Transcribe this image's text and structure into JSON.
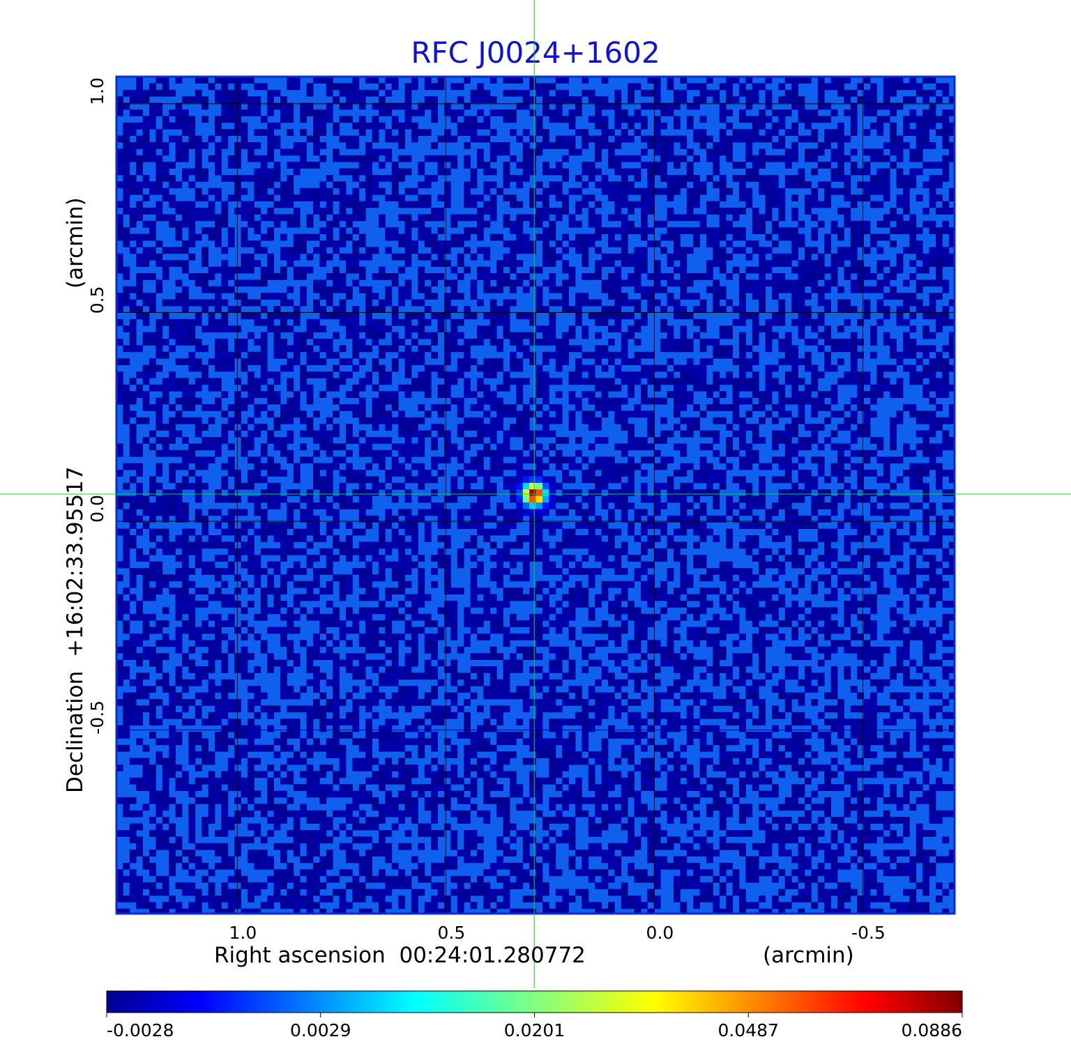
{
  "chart_data": {
    "type": "heatmap",
    "title": "RFC J0024+1602",
    "xlabel": "Right ascension  00:24:01.280772",
    "xunit": "(arcmin)",
    "ylabel": "Declination  +16:02:33.95517",
    "yunit": "(arcmin)",
    "x_axis": {
      "reversed": true,
      "range_arcmin": [
        1.29,
        -0.72
      ],
      "ticks": [
        1.0,
        0.5,
        0.0,
        -0.5
      ],
      "tick_labels": [
        "1.0",
        "0.5",
        "0.0",
        "-0.5"
      ]
    },
    "y_axis": {
      "range_arcmin": [
        -0.94,
        1.065
      ],
      "ticks": [
        1.0,
        0.5,
        0.0,
        -0.5
      ],
      "tick_labels": [
        "1.0",
        "0.5",
        "0.0",
        "-0.5"
      ]
    },
    "grid": true,
    "source_peak": {
      "x_arcmin": 0.288,
      "y_arcmin": 0.065,
      "peak_value": 0.0886
    },
    "crosshair": {
      "x_arcmin": 0.288,
      "y_arcmin": 0.065,
      "color": "#00e000"
    },
    "colorbar": {
      "colormap": "jet",
      "min": -0.0028,
      "max": 0.0886,
      "tick_labels": [
        "-0.0028",
        "0.0029",
        "0.0201",
        "0.0487",
        "0.0886"
      ]
    },
    "background_level": 0.0
  },
  "colors": {
    "title": "#1010d8",
    "frame": "#0a2ad8",
    "grid": "#000000",
    "crosshair": "#00e000"
  }
}
